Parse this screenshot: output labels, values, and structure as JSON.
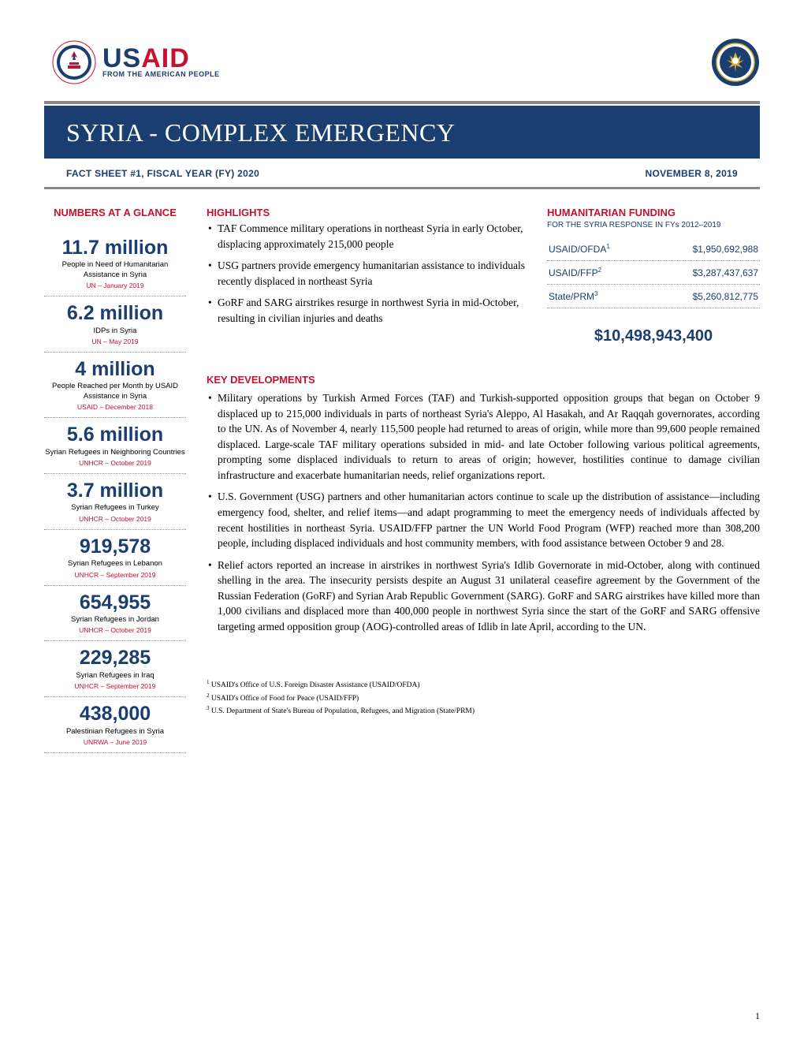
{
  "colors": {
    "navy": "#1a3e6f",
    "red": "#c41230",
    "gray_bar": "#888888",
    "dotted": "#999999",
    "text": "#000000",
    "bg": "#ffffff"
  },
  "fonts": {
    "serif": "Georgia",
    "sans": "Gill Sans",
    "title_size": 32,
    "stat_value_size": 25,
    "body_size": 13.5
  },
  "logos": {
    "usaid_word_pre": "US",
    "usaid_word_post": "AID",
    "usaid_tagline": "FROM THE AMERICAN PEOPLE"
  },
  "title": "SYRIA - COMPLEX EMERGENCY",
  "subtitle_left": "FACT SHEET #1, FISCAL YEAR (FY) 2020",
  "subtitle_right": "NOVEMBER 8, 2019",
  "numbers_title": "NUMBERS AT A GLANCE",
  "stats": [
    {
      "value": "11.7 million",
      "desc": "People in Need of Humanitarian Assistance in Syria",
      "src": "UN – January 2019"
    },
    {
      "value": "6.2 million",
      "desc": "IDPs in Syria",
      "src": "UN – May 2019"
    },
    {
      "value": "4 million",
      "desc": "People Reached per Month by USAID Assistance in Syria",
      "src": "USAID – December 2018"
    },
    {
      "value": "5.6 million",
      "desc": "Syrian Refugees in Neighboring Countries",
      "src": "UNHCR – October 2019"
    },
    {
      "value": "3.7 million",
      "desc": "Syrian Refugees in Turkey",
      "src": "UNHCR – October 2019"
    },
    {
      "value": "919,578",
      "desc": "Syrian Refugees in Lebanon",
      "src": "UNHCR – September 2019"
    },
    {
      "value": "654,955",
      "desc": "Syrian Refugees in Jordan",
      "src": "UNHCR – October 2019"
    },
    {
      "value": "229,285",
      "desc": "Syrian Refugees in Iraq",
      "src": "UNHCR – September 2019"
    },
    {
      "value": "438,000",
      "desc": "Palestinian Refugees in Syria",
      "src": "UNRWA – June 2019"
    }
  ],
  "highlights_title": "HIGHLIGHTS",
  "highlights": [
    "TAF Commence military operations in northeast Syria in early October, displacing approximately 215,000 people",
    "USG partners provide emergency humanitarian assistance to individuals recently displaced in northeast Syria",
    "GoRF and SARG airstrikes resurge in northwest Syria in mid-October, resulting in civilian injuries and deaths"
  ],
  "funding_title": "HUMANITARIAN FUNDING",
  "funding_sub": "FOR THE SYRIA RESPONSE IN FYs 2012–2019",
  "funding_rows": [
    {
      "label": "USAID/OFDA",
      "sup": "1",
      "amt": "$1,950,692,988"
    },
    {
      "label": "USAID/FFP",
      "sup": "2",
      "amt": "$3,287,437,637"
    },
    {
      "label": "State/PRM",
      "sup": "3",
      "amt": "$5,260,812,775"
    }
  ],
  "funding_total": "$10,498,943,400",
  "key_dev_title": "KEY DEVELOPMENTS",
  "key_dev": [
    "Military operations by Turkish Armed Forces (TAF) and Turkish-supported opposition groups that began on October 9 displaced up to 215,000 individuals in parts of northeast Syria's Aleppo, Al Hasakah, and Ar Raqqah governorates, according to the UN.  As of November 4, nearly 115,500 people had returned to areas of origin, while more than 99,600 people remained displaced.  Large-scale TAF military operations subsided in mid- and late October following various political agreements, prompting some displaced individuals to return to areas of origin; however, hostilities continue to damage civilian infrastructure and exacerbate humanitarian needs, relief organizations report.",
    "U.S. Government (USG) partners and other humanitarian actors continue to scale up the distribution of assistance—including emergency food, shelter, and relief items—and adapt programming to meet the emergency needs of individuals affected by recent hostilities in northeast Syria.  USAID/FFP partner the UN World Food Program (WFP) reached more than 308,200 people, including displaced individuals and host community members, with food assistance between October 9 and 28.",
    "Relief actors reported an increase in airstrikes in northwest Syria's Idlib Governorate in mid-October, along with continued shelling in the area.  The insecurity persists despite an August 31 unilateral ceasefire agreement by the Government of the Russian Federation (GoRF) and Syrian Arab Republic Government (SARG).  GoRF and SARG airstrikes have killed more than 1,000 civilians and displaced more than 400,000 people in northwest Syria since the start of the GoRF and SARG offensive targeting armed opposition group (AOG)-controlled areas of Idlib in late April, according to the UN."
  ],
  "footnotes": [
    "USAID's Office of U.S. Foreign Disaster Assistance (USAID/OFDA)",
    "USAID's Office of Food for Peace (USAID/FFP)",
    "U.S. Department of State's Bureau of Population, Refugees, and Migration (State/PRM)"
  ],
  "page_number": "1"
}
